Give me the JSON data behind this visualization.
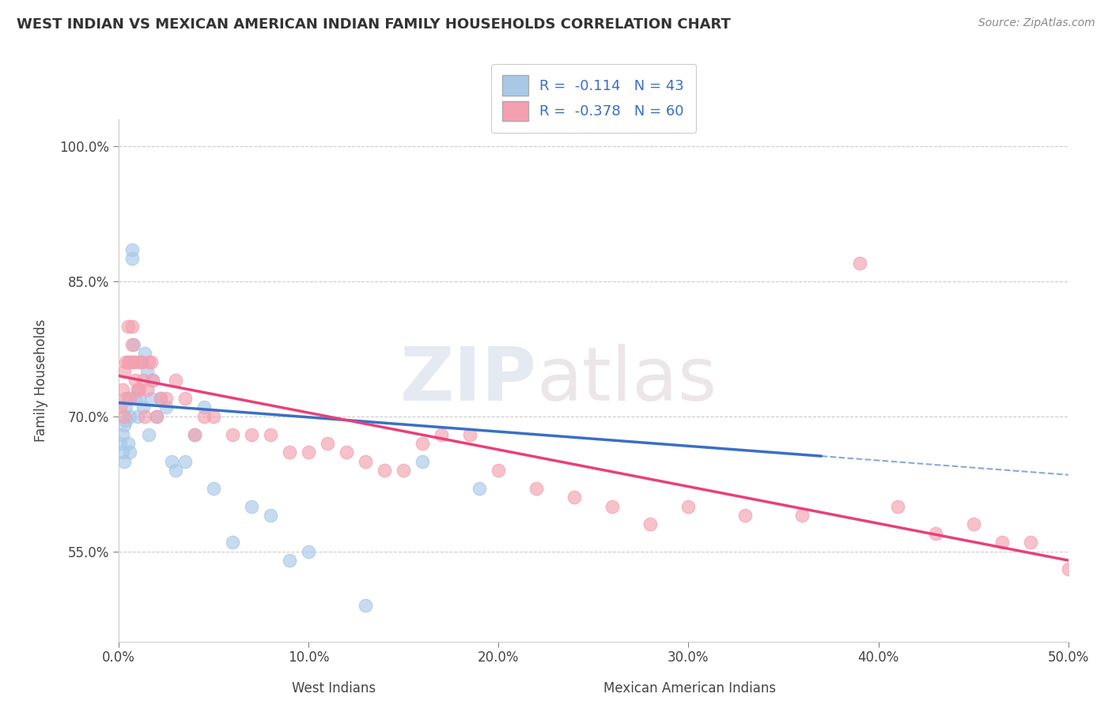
{
  "title": "WEST INDIAN VS MEXICAN AMERICAN INDIAN FAMILY HOUSEHOLDS CORRELATION CHART",
  "source": "Source: ZipAtlas.com",
  "xlabel_west": "West Indians",
  "xlabel_mexican": "Mexican American Indians",
  "ylabel": "Family Households",
  "xlim": [
    0.0,
    0.5
  ],
  "ylim": [
    0.45,
    1.03
  ],
  "xticks": [
    0.0,
    0.1,
    0.2,
    0.3,
    0.4,
    0.5
  ],
  "xticklabels": [
    "0.0%",
    "10.0%",
    "20.0%",
    "30.0%",
    "40.0%",
    "50.0%"
  ],
  "yticks": [
    0.55,
    0.7,
    0.85,
    1.0
  ],
  "yticklabels": [
    "55.0%",
    "70.0%",
    "85.0%",
    "100.0%"
  ],
  "R_blue": -0.114,
  "N_blue": 43,
  "R_pink": -0.378,
  "N_pink": 60,
  "blue_color": "#a8c8e8",
  "pink_color": "#f4a0b0",
  "blue_line_color": "#3a6fc4",
  "pink_line_color": "#e8407a",
  "blue_dash_color": "#6090d0",
  "watermark_zip": "ZIP",
  "watermark_atlas": "atlas",
  "blue_line_end": 0.37,
  "west_indian_x": [
    0.001,
    0.002,
    0.002,
    0.003,
    0.003,
    0.004,
    0.004,
    0.005,
    0.005,
    0.006,
    0.006,
    0.007,
    0.007,
    0.008,
    0.008,
    0.009,
    0.01,
    0.01,
    0.011,
    0.012,
    0.013,
    0.014,
    0.015,
    0.016,
    0.017,
    0.018,
    0.02,
    0.022,
    0.025,
    0.028,
    0.03,
    0.035,
    0.04,
    0.045,
    0.05,
    0.06,
    0.07,
    0.08,
    0.09,
    0.1,
    0.13,
    0.16,
    0.19
  ],
  "west_indian_y": [
    0.67,
    0.68,
    0.66,
    0.69,
    0.65,
    0.71,
    0.695,
    0.67,
    0.72,
    0.66,
    0.7,
    0.875,
    0.885,
    0.76,
    0.78,
    0.72,
    0.7,
    0.73,
    0.72,
    0.76,
    0.71,
    0.77,
    0.75,
    0.68,
    0.72,
    0.74,
    0.7,
    0.72,
    0.71,
    0.65,
    0.64,
    0.65,
    0.68,
    0.71,
    0.62,
    0.56,
    0.6,
    0.59,
    0.54,
    0.55,
    0.49,
    0.65,
    0.62
  ],
  "mexican_x": [
    0.001,
    0.002,
    0.003,
    0.003,
    0.004,
    0.004,
    0.005,
    0.005,
    0.006,
    0.006,
    0.007,
    0.007,
    0.008,
    0.009,
    0.01,
    0.01,
    0.011,
    0.012,
    0.013,
    0.014,
    0.015,
    0.016,
    0.017,
    0.018,
    0.02,
    0.022,
    0.025,
    0.03,
    0.035,
    0.04,
    0.045,
    0.05,
    0.06,
    0.07,
    0.08,
    0.09,
    0.1,
    0.11,
    0.12,
    0.13,
    0.14,
    0.15,
    0.16,
    0.17,
    0.185,
    0.2,
    0.22,
    0.24,
    0.26,
    0.28,
    0.3,
    0.33,
    0.36,
    0.39,
    0.41,
    0.43,
    0.45,
    0.465,
    0.48,
    0.5
  ],
  "mexican_y": [
    0.71,
    0.73,
    0.7,
    0.75,
    0.72,
    0.76,
    0.76,
    0.8,
    0.72,
    0.76,
    0.8,
    0.78,
    0.76,
    0.74,
    0.73,
    0.76,
    0.73,
    0.76,
    0.74,
    0.7,
    0.73,
    0.76,
    0.76,
    0.74,
    0.7,
    0.72,
    0.72,
    0.74,
    0.72,
    0.68,
    0.7,
    0.7,
    0.68,
    0.68,
    0.68,
    0.66,
    0.66,
    0.67,
    0.66,
    0.65,
    0.64,
    0.64,
    0.67,
    0.68,
    0.68,
    0.64,
    0.62,
    0.61,
    0.6,
    0.58,
    0.6,
    0.59,
    0.59,
    0.87,
    0.6,
    0.57,
    0.58,
    0.56,
    0.56,
    0.53
  ]
}
